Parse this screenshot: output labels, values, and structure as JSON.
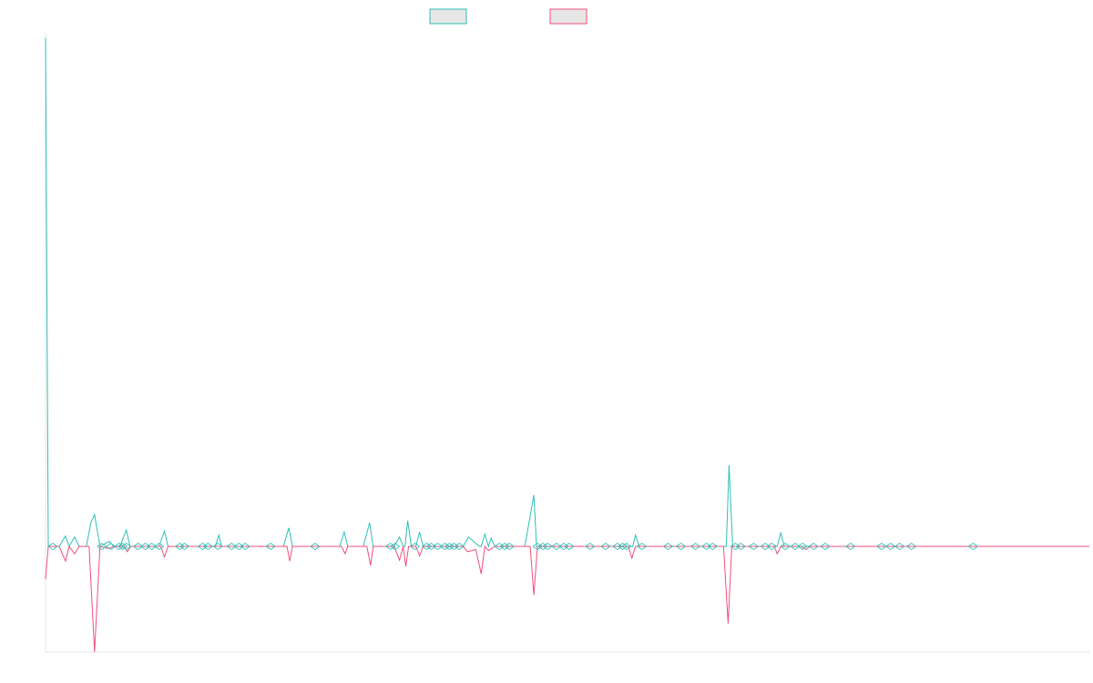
{
  "colors": {
    "series_a": "#2ebfb6",
    "series_b": "#f0507a",
    "axis": "#e5e5e5",
    "legend_fill": "#e6e6e6"
  },
  "chart_data": {
    "type": "line",
    "x_range": [
      0,
      1150
    ],
    "y_range": [
      -100,
      500
    ],
    "grid": false,
    "legend_position": "top-center",
    "series": [
      {
        "values": [
          [
            0,
            495
          ],
          [
            3,
            0
          ],
          [
            15,
            0
          ],
          [
            22,
            10
          ],
          [
            26,
            0
          ],
          [
            32,
            9
          ],
          [
            37,
            0
          ],
          [
            45,
            0
          ],
          [
            50,
            23
          ],
          [
            54,
            31
          ],
          [
            60,
            0
          ],
          [
            70,
            5
          ],
          [
            75,
            0
          ],
          [
            82,
            0
          ],
          [
            89,
            16
          ],
          [
            93,
            0
          ],
          [
            125,
            0
          ],
          [
            131,
            15
          ],
          [
            135,
            0
          ],
          [
            187,
            0
          ],
          [
            191,
            11
          ],
          [
            194,
            0
          ],
          [
            262,
            0
          ],
          [
            268,
            18
          ],
          [
            272,
            0
          ],
          [
            324,
            0
          ],
          [
            329,
            14
          ],
          [
            333,
            0
          ],
          [
            350,
            0
          ],
          [
            357,
            23
          ],
          [
            361,
            0
          ],
          [
            384,
            0
          ],
          [
            390,
            9
          ],
          [
            394,
            0
          ],
          [
            396,
            0
          ],
          [
            399,
            25
          ],
          [
            403,
            0
          ],
          [
            408,
            0
          ],
          [
            412,
            14
          ],
          [
            416,
            0
          ],
          [
            460,
            0
          ],
          [
            466,
            9
          ],
          [
            474,
            3
          ],
          [
            478,
            0
          ],
          [
            480,
            0
          ],
          [
            484,
            12
          ],
          [
            488,
            0
          ],
          [
            491,
            8
          ],
          [
            495,
            0
          ],
          [
            528,
            0
          ],
          [
            538,
            50
          ],
          [
            541,
            0
          ],
          [
            614,
            0
          ],
          [
            647,
            0
          ],
          [
            650,
            11
          ],
          [
            654,
            0
          ],
          [
            730,
            0
          ],
          [
            750,
            0
          ],
          [
            753,
            79
          ],
          [
            757,
            0
          ],
          [
            806,
            0
          ],
          [
            810,
            13
          ],
          [
            814,
            0
          ],
          [
            1150,
            0
          ]
        ]
      },
      {
        "values": [
          [
            0,
            -31
          ],
          [
            3,
            0
          ],
          [
            15,
            0
          ],
          [
            22,
            -14
          ],
          [
            26,
            0
          ],
          [
            32,
            -7
          ],
          [
            37,
            0
          ],
          [
            48,
            0
          ],
          [
            54,
            -100
          ],
          [
            60,
            0
          ],
          [
            70,
            -2
          ],
          [
            75,
            0
          ],
          [
            87,
            0
          ],
          [
            90,
            -5
          ],
          [
            94,
            0
          ],
          [
            127,
            0
          ],
          [
            131,
            -10
          ],
          [
            135,
            0
          ],
          [
            266,
            0
          ],
          [
            269,
            -14
          ],
          [
            272,
            0
          ],
          [
            326,
            0
          ],
          [
            330,
            -7
          ],
          [
            333,
            0
          ],
          [
            354,
            0
          ],
          [
            358,
            -18
          ],
          [
            361,
            0
          ],
          [
            384,
            0
          ],
          [
            390,
            -13
          ],
          [
            394,
            0
          ],
          [
            397,
            -19
          ],
          [
            400,
            0
          ],
          [
            408,
            0
          ],
          [
            412,
            -9
          ],
          [
            416,
            0
          ],
          [
            460,
            0
          ],
          [
            465,
            -5
          ],
          [
            474,
            -3
          ],
          [
            480,
            -26
          ],
          [
            484,
            0
          ],
          [
            488,
            -4
          ],
          [
            495,
            0
          ],
          [
            534,
            0
          ],
          [
            538,
            -46
          ],
          [
            542,
            0
          ],
          [
            642,
            0
          ],
          [
            646,
            -11
          ],
          [
            650,
            0
          ],
          [
            747,
            0
          ],
          [
            752,
            -73
          ],
          [
            756,
            0
          ],
          [
            803,
            0
          ],
          [
            806,
            -7
          ],
          [
            810,
            0
          ],
          [
            832,
            0
          ],
          [
            838,
            -3
          ],
          [
            842,
            0
          ],
          [
            1150,
            0
          ]
        ]
      }
    ],
    "minor_markers": [
      [
        8,
        2
      ],
      [
        62,
        2
      ],
      [
        72,
        2
      ],
      [
        81,
        2
      ],
      [
        85,
        2
      ],
      [
        89,
        2
      ],
      [
        102,
        2
      ],
      [
        110,
        2
      ],
      [
        117,
        2
      ],
      [
        125,
        2
      ],
      [
        148,
        2
      ],
      [
        153,
        2
      ],
      [
        173,
        2
      ],
      [
        179,
        2
      ],
      [
        190,
        2
      ],
      [
        205,
        2
      ],
      [
        213,
        2
      ],
      [
        220,
        2
      ],
      [
        248,
        2
      ],
      [
        297,
        2
      ],
      [
        380,
        2
      ],
      [
        385,
        2
      ],
      [
        407,
        2
      ],
      [
        420,
        2
      ],
      [
        425,
        2
      ],
      [
        432,
        2
      ],
      [
        440,
        2
      ],
      [
        445,
        2
      ],
      [
        450,
        2
      ],
      [
        456,
        2
      ],
      [
        500,
        2
      ],
      [
        506,
        2
      ],
      [
        511,
        2
      ],
      [
        542,
        2
      ],
      [
        548,
        2
      ],
      [
        553,
        2
      ],
      [
        563,
        2
      ],
      [
        571,
        2
      ],
      [
        577,
        2
      ],
      [
        600,
        2
      ],
      [
        617,
        2
      ],
      [
        630,
        2
      ],
      [
        636,
        2
      ],
      [
        640,
        2
      ],
      [
        657,
        2
      ],
      [
        686,
        2
      ],
      [
        700,
        2
      ],
      [
        716,
        2
      ],
      [
        728,
        2
      ],
      [
        735,
        2
      ],
      [
        760,
        2
      ],
      [
        766,
        2
      ],
      [
        780,
        2
      ],
      [
        793,
        2
      ],
      [
        800,
        2
      ],
      [
        815,
        2
      ],
      [
        826,
        2
      ],
      [
        834,
        2
      ],
      [
        846,
        2
      ],
      [
        859,
        2
      ],
      [
        887,
        2
      ],
      [
        921,
        2
      ],
      [
        931,
        2
      ],
      [
        941,
        2
      ],
      [
        954,
        2
      ],
      [
        1022,
        2
      ]
    ]
  }
}
